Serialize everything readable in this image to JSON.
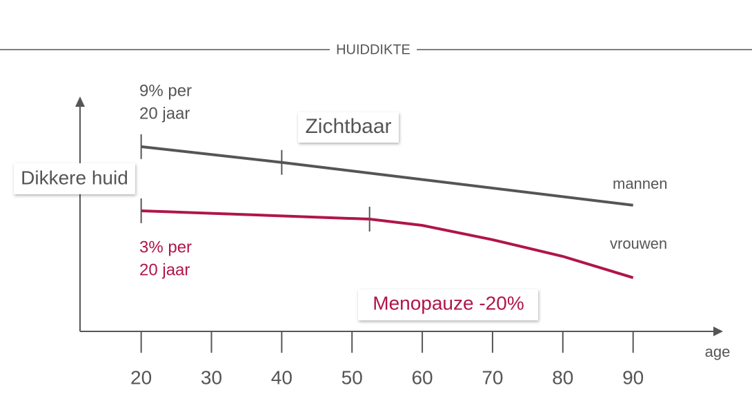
{
  "chart_data": {
    "type": "line",
    "title": "HUIDDIKTE",
    "ylabel": "Dikkere huid",
    "xlabel": "age",
    "xlim": [
      11.3,
      102.5
    ],
    "xticks": [
      20,
      30,
      40,
      50,
      60,
      70,
      80,
      90
    ],
    "ylim": [
      0,
      100
    ],
    "series": [
      {
        "name": "mannen",
        "color": "#555555",
        "x": [
          20,
          40,
          90
        ],
        "values": [
          79.8,
          73,
          54.5
        ],
        "markers": [
          20,
          40
        ]
      },
      {
        "name": "vrouwen",
        "color": "#b0154a",
        "x": [
          20,
          52.5,
          60,
          70,
          80,
          90
        ],
        "values": [
          52.1,
          48.5,
          45.8,
          39.6,
          32.4,
          23.2
        ],
        "markers": [
          20,
          52.5
        ]
      }
    ],
    "annotations": [
      {
        "lines": [
          "9% per",
          "20 jaar"
        ],
        "color": "#555555"
      },
      {
        "lines": [
          "Zichtbaar"
        ],
        "color": "#555555"
      },
      {
        "lines": [
          "3% per",
          "20 jaar"
        ],
        "color": "#b0154a"
      },
      {
        "lines": [
          "Menopauze -20%"
        ],
        "color": "#b0154a"
      }
    ]
  }
}
